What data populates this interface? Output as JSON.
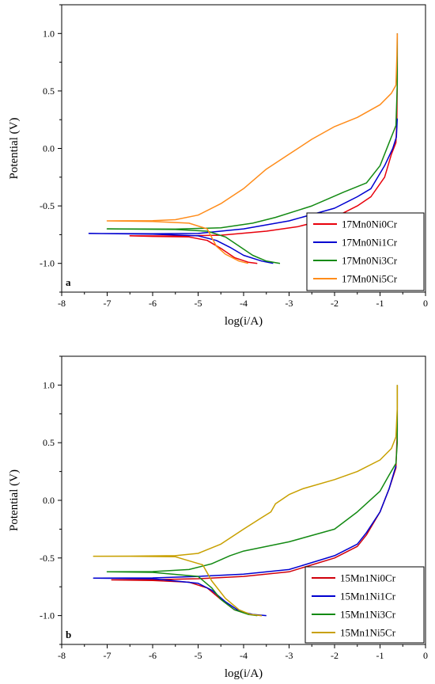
{
  "chart_data": [
    {
      "type": "line",
      "panel_label": "a",
      "xlabel": "log(i/A)",
      "ylabel": "Potential (V)",
      "xlim": [
        -8,
        0
      ],
      "ylim": [
        -1.25,
        1.25
      ],
      "x_ticks": [
        -8,
        -7,
        -6,
        -5,
        -4,
        -3,
        -2,
        -1,
        0
      ],
      "x_tick_labels": [
        "-8",
        "-7",
        "-6",
        "-5",
        "-4",
        "-3",
        "-2",
        "-1",
        "0"
      ],
      "y_ticks": [
        -1.0,
        -0.5,
        0.0,
        0.5,
        1.0
      ],
      "y_tick_labels": [
        "-1.0",
        "-0.5",
        "0.0",
        "0.5",
        "1.0"
      ],
      "legend_position": "bottom-right",
      "series": [
        {
          "name": "17Mn0Ni0Cr",
          "color": "#e8000b",
          "points": [
            [
              -3.7,
              -1.0
            ],
            [
              -3.9,
              -0.99
            ],
            [
              -4.2,
              -0.95
            ],
            [
              -4.5,
              -0.87
            ],
            [
              -4.8,
              -0.8
            ],
            [
              -5.2,
              -0.77
            ],
            [
              -6.0,
              -0.765
            ],
            [
              -6.5,
              -0.76
            ],
            [
              -5.5,
              -0.762
            ],
            [
              -4.5,
              -0.755
            ],
            [
              -3.5,
              -0.72
            ],
            [
              -2.8,
              -0.68
            ],
            [
              -2.0,
              -0.6
            ],
            [
              -1.5,
              -0.5
            ],
            [
              -1.2,
              -0.42
            ],
            [
              -0.9,
              -0.25
            ],
            [
              -0.75,
              -0.05
            ],
            [
              -0.65,
              0.05
            ],
            [
              -0.63,
              0.25
            ],
            [
              -0.62,
              0.6
            ],
            [
              -0.62,
              1.0
            ]
          ]
        },
        {
          "name": "17Mn0Ni1Cr",
          "color": "#0000d0",
          "points": [
            [
              -3.35,
              -1.0
            ],
            [
              -3.6,
              -0.98
            ],
            [
              -4.0,
              -0.93
            ],
            [
              -4.3,
              -0.86
            ],
            [
              -4.6,
              -0.8
            ],
            [
              -5.0,
              -0.76
            ],
            [
              -6.0,
              -0.745
            ],
            [
              -7.4,
              -0.74
            ],
            [
              -6.0,
              -0.742
            ],
            [
              -5.0,
              -0.74
            ],
            [
              -4.0,
              -0.7
            ],
            [
              -3.0,
              -0.63
            ],
            [
              -2.0,
              -0.52
            ],
            [
              -1.5,
              -0.42
            ],
            [
              -1.2,
              -0.35
            ],
            [
              -0.9,
              -0.15
            ],
            [
              -0.72,
              0.0
            ],
            [
              -0.64,
              0.1
            ],
            [
              -0.62,
              0.26
            ]
          ]
        },
        {
          "name": "17Mn0Ni3Cr",
          "color": "#138a13",
          "points": [
            [
              -3.2,
              -1.0
            ],
            [
              -3.5,
              -0.98
            ],
            [
              -3.8,
              -0.93
            ],
            [
              -4.1,
              -0.85
            ],
            [
              -4.4,
              -0.77
            ],
            [
              -4.8,
              -0.72
            ],
            [
              -5.5,
              -0.705
            ],
            [
              -7.0,
              -0.7
            ],
            [
              -5.5,
              -0.702
            ],
            [
              -4.5,
              -0.69
            ],
            [
              -3.8,
              -0.65
            ],
            [
              -3.3,
              -0.6
            ],
            [
              -2.5,
              -0.5
            ],
            [
              -1.8,
              -0.38
            ],
            [
              -1.3,
              -0.3
            ],
            [
              -1.0,
              -0.15
            ],
            [
              -0.8,
              0.05
            ],
            [
              -0.65,
              0.2
            ],
            [
              -0.62,
              0.55
            ],
            [
              -0.62,
              1.0
            ]
          ]
        },
        {
          "name": "17Mn0Ni5Cr",
          "color": "#ff8c1a",
          "points": [
            [
              -3.9,
              -1.0
            ],
            [
              -4.1,
              -0.98
            ],
            [
              -4.4,
              -0.92
            ],
            [
              -4.6,
              -0.85
            ],
            [
              -4.8,
              -0.7
            ],
            [
              -5.2,
              -0.65
            ],
            [
              -6.0,
              -0.635
            ],
            [
              -7.0,
              -0.63
            ],
            [
              -6.0,
              -0.628
            ],
            [
              -5.5,
              -0.62
            ],
            [
              -5.0,
              -0.58
            ],
            [
              -4.5,
              -0.48
            ],
            [
              -4.0,
              -0.35
            ],
            [
              -3.5,
              -0.18
            ],
            [
              -3.0,
              -0.05
            ],
            [
              -2.5,
              0.08
            ],
            [
              -2.0,
              0.19
            ],
            [
              -1.5,
              0.27
            ],
            [
              -1.0,
              0.38
            ],
            [
              -0.75,
              0.48
            ],
            [
              -0.65,
              0.55
            ],
            [
              -0.63,
              0.8
            ],
            [
              -0.62,
              1.0
            ]
          ]
        }
      ]
    },
    {
      "type": "line",
      "panel_label": "b",
      "xlabel": "log(i/A)",
      "ylabel": "Potential (V)",
      "xlim": [
        -8,
        0
      ],
      "ylim": [
        -1.25,
        1.25
      ],
      "x_ticks": [
        -8,
        -7,
        -6,
        -5,
        -4,
        -3,
        -2,
        -1,
        0
      ],
      "x_tick_labels": [
        "-8",
        "-7",
        "-6",
        "-5",
        "-4",
        "-3",
        "-2",
        "-1",
        "0"
      ],
      "y_ticks": [
        -1.0,
        -0.5,
        0.0,
        0.5,
        1.0
      ],
      "y_tick_labels": [
        "-1.0",
        "-0.5",
        "0.0",
        "0.5",
        "1.0"
      ],
      "legend_position": "bottom-right",
      "series": [
        {
          "name": "15Mn1Ni0Cr",
          "color": "#d0000b",
          "points": [
            [
              -3.6,
              -1.0
            ],
            [
              -3.85,
              -0.99
            ],
            [
              -4.2,
              -0.95
            ],
            [
              -4.5,
              -0.86
            ],
            [
              -4.8,
              -0.76
            ],
            [
              -5.2,
              -0.71
            ],
            [
              -6.0,
              -0.695
            ],
            [
              -6.9,
              -0.69
            ],
            [
              -6.0,
              -0.688
            ],
            [
              -5.0,
              -0.68
            ],
            [
              -4.0,
              -0.66
            ],
            [
              -3.0,
              -0.62
            ],
            [
              -2.0,
              -0.5
            ],
            [
              -1.5,
              -0.4
            ],
            [
              -1.3,
              -0.3
            ],
            [
              -1.0,
              -0.1
            ],
            [
              -0.8,
              0.1
            ],
            [
              -0.65,
              0.28
            ],
            [
              -0.62,
              0.6
            ],
            [
              -0.62,
              1.0
            ]
          ]
        },
        {
          "name": "15Mn1Ni1Cr",
          "color": "#0000d0",
          "points": [
            [
              -3.5,
              -1.0
            ],
            [
              -3.8,
              -0.99
            ],
            [
              -4.1,
              -0.96
            ],
            [
              -4.4,
              -0.88
            ],
            [
              -4.7,
              -0.78
            ],
            [
              -5.0,
              -0.72
            ],
            [
              -6.0,
              -0.68
            ],
            [
              -7.3,
              -0.675
            ],
            [
              -6.0,
              -0.673
            ],
            [
              -5.0,
              -0.66
            ],
            [
              -4.0,
              -0.64
            ],
            [
              -3.0,
              -0.6
            ],
            [
              -2.0,
              -0.48
            ],
            [
              -1.5,
              -0.38
            ],
            [
              -1.3,
              -0.28
            ],
            [
              -1.0,
              -0.1
            ],
            [
              -0.8,
              0.1
            ],
            [
              -0.65,
              0.3
            ]
          ]
        },
        {
          "name": "15Mn1Ni3Cr",
          "color": "#138a13",
          "points": [
            [
              -3.7,
              -1.0
            ],
            [
              -3.9,
              -0.99
            ],
            [
              -4.2,
              -0.95
            ],
            [
              -4.5,
              -0.86
            ],
            [
              -4.7,
              -0.76
            ],
            [
              -5.0,
              -0.66
            ],
            [
              -6.0,
              -0.625
            ],
            [
              -7.0,
              -0.62
            ],
            [
              -6.0,
              -0.618
            ],
            [
              -5.2,
              -0.6
            ],
            [
              -4.7,
              -0.55
            ],
            [
              -4.3,
              -0.48
            ],
            [
              -4.0,
              -0.44
            ],
            [
              -3.0,
              -0.36
            ],
            [
              -2.0,
              -0.25
            ],
            [
              -1.5,
              -0.1
            ],
            [
              -1.0,
              0.08
            ],
            [
              -0.8,
              0.22
            ],
            [
              -0.65,
              0.32
            ],
            [
              -0.62,
              0.5
            ],
            [
              -0.62,
              1.0
            ]
          ]
        },
        {
          "name": "15Mn1Ni5Cr",
          "color": "#c8a000",
          "points": [
            [
              -3.6,
              -1.0
            ],
            [
              -3.85,
              -0.99
            ],
            [
              -4.1,
              -0.95
            ],
            [
              -4.4,
              -0.85
            ],
            [
              -4.7,
              -0.7
            ],
            [
              -4.9,
              -0.56
            ],
            [
              -5.5,
              -0.49
            ],
            [
              -6.5,
              -0.485
            ],
            [
              -7.3,
              -0.485
            ],
            [
              -6.5,
              -0.484
            ],
            [
              -5.5,
              -0.48
            ],
            [
              -5.0,
              -0.46
            ],
            [
              -4.5,
              -0.38
            ],
            [
              -4.0,
              -0.25
            ],
            [
              -3.6,
              -0.15
            ],
            [
              -3.4,
              -0.1
            ],
            [
              -3.3,
              -0.03
            ],
            [
              -3.0,
              0.05
            ],
            [
              -2.7,
              0.1
            ],
            [
              -2.0,
              0.18
            ],
            [
              -1.5,
              0.25
            ],
            [
              -1.0,
              0.35
            ],
            [
              -0.75,
              0.45
            ],
            [
              -0.65,
              0.55
            ],
            [
              -0.62,
              0.8
            ],
            [
              -0.62,
              1.0
            ]
          ]
        }
      ]
    }
  ]
}
